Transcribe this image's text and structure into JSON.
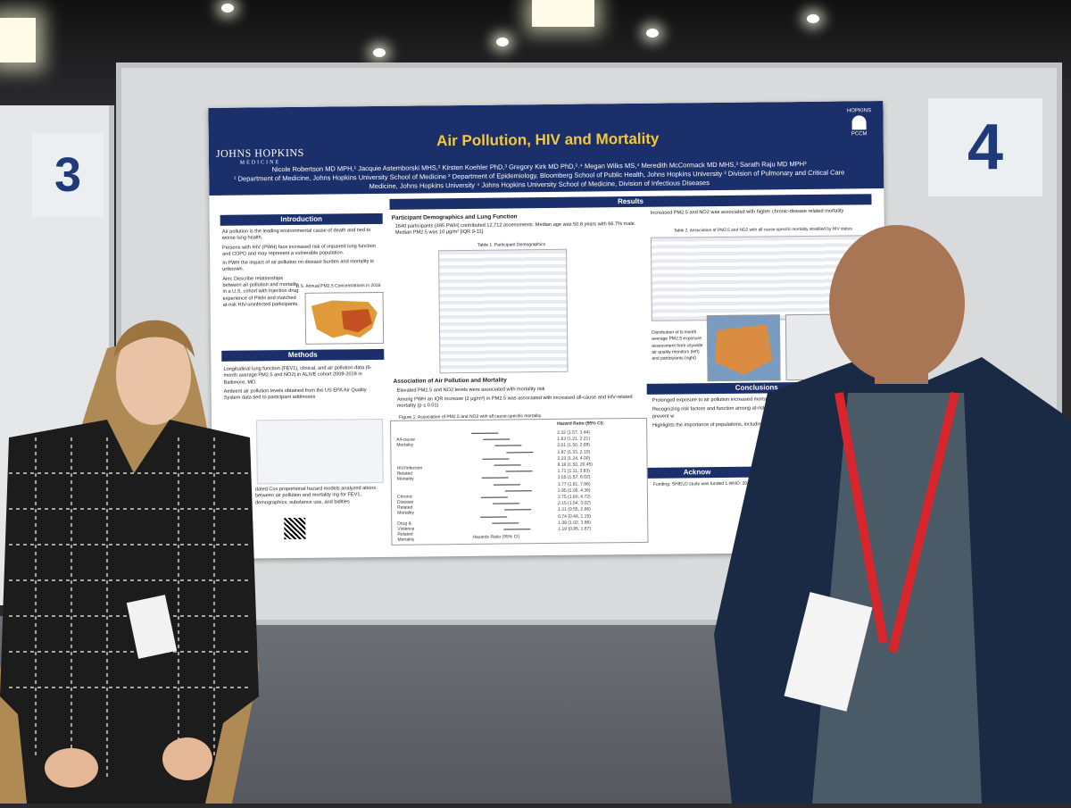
{
  "scene": {
    "description_free": true
  },
  "booth": {
    "left_number": "3",
    "right_number": "4"
  },
  "poster": {
    "title": "Air Pollution, HIV and Mortality",
    "institution": "JOHNS HOPKINS",
    "institution_sub": "MEDICINE",
    "logo_text": "HOPKINS",
    "logo_sub": "PCCM",
    "authors": "Nicole Robertson MD MPH,¹ Jacquie Astemborski MHS,² Kirsten Koehler PhD,³ Gregory Kirk MD PhD,²˒⁴ Megan Wilks MS,⁴ Meredith McCormack MD MHS,³ Sarath Raju MD MPH³",
    "affiliations": "¹ Department of Medicine, Johns Hopkins University School of Medicine ² Department of Epidemiology, Bloomberg School of Public Health, Johns Hopkins University ³ Division of Pulmonary and Critical Care Medicine, Johns Hopkins University ⁴ Johns Hopkins University School of Medicine, Division of Infectious Diseases",
    "sections": {
      "introduction": "Introduction",
      "methods": "Methods",
      "results": "Results",
      "conclusions": "Conclusions",
      "acknowledgements": "Acknow"
    },
    "intro_bullets": [
      "Air pollution is the leading environmental cause of death and tied to worse lung health.",
      "Persons with HIV (PWH) face increased risk of impaired lung function and COPD and may represent a vulnerable population.",
      "In PWH the impact of air pollution on disease burden and mortality is unknown.",
      "Aim: Describe relationships between air pollution and mortality in a U.S. cohort with injection drug experience of PWH and matched at-risk HIV-uninfected participants."
    ],
    "map_caption": "U.S. Annual PM2.5 Concentrations in 2016",
    "methods_bullets": [
      "Longitudinal lung function (FEV1), clinical, and air pollution data (6-month average PM2.5 and NO2) in ALIVE cohort 2009-2019 in Baltimore, MD.",
      "Ambient air pollution levels obtained from the US EPA Air Quality System data tied to participant addresses"
    ],
    "methods_tail": "dated Cox proportional hazard models analyzed ations between air pollution and mortality ing for FEV1, demographics, substance use, and bidities",
    "results_sub1": "Participant Demographics and Lung Function",
    "results_text1": "1640 participants (495 PWH) contributed 12,712 assessments. Median age was 50.8 years with 66.7% male. Median PM2.5 was 10 μg/m³ [IQR 9-11].",
    "table1_caption": "Table 1. Participant Demographics",
    "results_sub2": "Association of Air Pollution and Mortality",
    "results_text2a": "Elevated PM2.5 and NO2 levels were associated with mortality risk",
    "results_text2b": "Among PWH an IQR increase (2 μg/m³) in PM2.5 was associated with increased all-cause and HIV-related mortality (p ≤ 0.01)",
    "figure1_caption": "Figure 1. Association of PM2.5 and NO2 with all cause-specific mortality",
    "forest_header": "Hazard Ratio (95% CI)",
    "forest_xlabel": "Hazards Ratio (95% CI)",
    "forest_groups": [
      "All-cause Mortality",
      "HIV/Infection Related Mortality",
      "Chronic Disease Related Mortality",
      "Drug & Violence Related Mortality"
    ],
    "forest_values": [
      "2.32 (1.57, 3.44)",
      "1.63 (1.21, 2.21)",
      "2.01 (1.50, 2.69)",
      "1.87 (1.33, 2.10)",
      "2.23 (1.24, 4.00)",
      "8.18 (1.50, 20.45)",
      "1.71 (1.11, 2.63)",
      "3.55 (1.57, 8.02)",
      "3.77 (1.61, 7.86)",
      "2.85 (2.05, 4.36)",
      "2.75 (1.60, 4.72)",
      "2.15 (1.54, 3.02)",
      "1.21 (0.55, 2.66)",
      "0.74 (0.48, 1.15)",
      "1.08 (1.02, 3.86)",
      "1.19 (0.85, 1.67)"
    ],
    "right_bullet1": "Increased PM2.5 and NO2 was associated with higher chronic-disease related mortality",
    "table2_caption": "Table 2. Association of PM2.5 and NO2 with all cause-specific mortality stratified by HIV status",
    "map2_caption": "Distribution of 6-month average PM2.5 exposure assessment from citywide air quality monitors (left) and participants (right)",
    "conclusions_bullets": [
      "Prolonged exposure to air pollution increased mortality in this",
      "Recognizing risk factors and function among at-risk popul exposure is key to prevent w",
      "Highlights the importance of populations, including PWH"
    ],
    "funding": "Funding: SHIELD study was funded 1.WHO. 2022. Ambient (outdoor) air"
  },
  "colors": {
    "poster_header": "#1b2f6b",
    "poster_title": "#f3c93b",
    "lanyard": "#d8262c",
    "booth_number": "#1e3a78"
  }
}
